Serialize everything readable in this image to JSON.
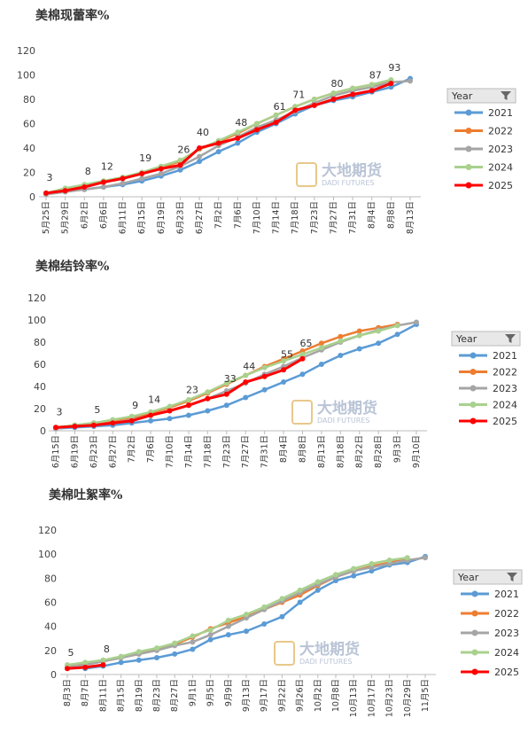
{
  "chart_data": [
    {
      "type": "line",
      "title": "美棉现蕾率%",
      "watermark": "大地期货",
      "watermark_sub": "DADI FUTURES",
      "legend_title": "Year",
      "legend": "right",
      "categories": [
        "5月25日",
        "5月29日",
        "6月2日",
        "6月6日",
        "6月11日",
        "6月15日",
        "6月19日",
        "6月23日",
        "6月27日",
        "7月2日",
        "7月6日",
        "7月10日",
        "7月14日",
        "7月18日",
        "7月23日",
        "7月27日",
        "7月31日",
        "8月4日",
        "8月8日",
        "8月13日"
      ],
      "ylim": [
        0,
        120
      ],
      "yticks": [
        0,
        20,
        40,
        60,
        80,
        100,
        120
      ],
      "series": [
        {
          "name": "2021",
          "color": "#5b9bd5",
          "values": [
            3,
            5,
            6,
            8,
            10,
            13,
            17,
            22,
            29,
            37,
            44,
            53,
            60,
            68,
            75,
            79,
            82,
            86,
            90,
            97
          ]
        },
        {
          "name": "2022",
          "color": "#ed7d31",
          "values": [
            3,
            6,
            9,
            12,
            15,
            19,
            24,
            29,
            39,
            45,
            52,
            60,
            67,
            74,
            80,
            85,
            89,
            92,
            95,
            null
          ]
        },
        {
          "name": "2023",
          "color": "#a5a5a5",
          "values": [
            2,
            4,
            6,
            8,
            11,
            15,
            19,
            25,
            33,
            42,
            49,
            57,
            63,
            70,
            77,
            83,
            87,
            90,
            94,
            95
          ]
        },
        {
          "name": "2024",
          "color": "#a9d18e",
          "values": [
            3,
            7,
            10,
            13,
            16,
            20,
            25,
            30,
            39,
            46,
            53,
            60,
            67,
            74,
            80,
            85,
            89,
            92,
            96,
            null
          ]
        },
        {
          "name": "2025",
          "color": "#ff0000",
          "values": [
            3,
            5,
            8,
            12,
            15,
            19,
            23,
            26,
            40,
            44,
            48,
            55,
            61,
            71,
            75,
            80,
            84,
            87,
            93,
            null
          ],
          "value_labels": [
            "3",
            null,
            "8",
            "12",
            null,
            "19",
            null,
            "26",
            "40",
            null,
            "48",
            null,
            "61",
            "71",
            null,
            "80",
            null,
            "87",
            "93",
            null
          ]
        }
      ]
    },
    {
      "type": "line",
      "title": "美棉结铃率%",
      "watermark": "大地期货",
      "watermark_sub": "DADI FUTURES",
      "legend_title": "Year",
      "legend": "right",
      "categories": [
        "6月15日",
        "6月19日",
        "6月23日",
        "6月27日",
        "7月2日",
        "7月6日",
        "7月10日",
        "7月14日",
        "7月18日",
        "7月23日",
        "7月27日",
        "7月31日",
        "8月4日",
        "8月8日",
        "8月13日",
        "8月18日",
        "8月22日",
        "8月28日",
        "9月3日",
        "9月10日"
      ],
      "ylim": [
        0,
        120
      ],
      "yticks": [
        0,
        20,
        40,
        60,
        80,
        100,
        120
      ],
      "series": [
        {
          "name": "2021",
          "color": "#5b9bd5",
          "values": [
            2,
            3,
            4,
            5,
            7,
            9,
            11,
            14,
            18,
            23,
            30,
            37,
            44,
            51,
            60,
            68,
            74,
            79,
            87,
            96
          ]
        },
        {
          "name": "2022",
          "color": "#ed7d31",
          "values": [
            3,
            5,
            7,
            9,
            12,
            16,
            21,
            27,
            34,
            42,
            50,
            58,
            65,
            72,
            79,
            85,
            90,
            93,
            96,
            null
          ]
        },
        {
          "name": "2023",
          "color": "#a5a5a5",
          "values": [
            2,
            4,
            5,
            7,
            10,
            14,
            18,
            23,
            29,
            36,
            43,
            51,
            58,
            66,
            73,
            80,
            86,
            91,
            95,
            98
          ]
        },
        {
          "name": "2024",
          "color": "#a9d18e",
          "values": [
            3,
            5,
            7,
            10,
            13,
            17,
            22,
            28,
            35,
            43,
            50,
            57,
            63,
            69,
            75,
            81,
            86,
            90,
            95,
            null
          ]
        },
        {
          "name": "2025",
          "color": "#ff0000",
          "values": [
            3,
            4,
            5,
            7,
            9,
            14,
            18,
            23,
            29,
            33,
            44,
            49,
            55,
            65,
            null,
            null,
            null,
            null,
            null,
            null
          ],
          "value_labels": [
            "3",
            null,
            "5",
            null,
            "9",
            "14",
            null,
            "23",
            null,
            "33",
            "44",
            null,
            "55",
            "65",
            null,
            null,
            null,
            null,
            null,
            null
          ]
        }
      ]
    },
    {
      "type": "line",
      "title": "美棉吐絮率%",
      "watermark": "大地期货",
      "watermark_sub": "DADI FUTURES",
      "legend_title": "Year",
      "legend": "right",
      "categories": [
        "8月3日",
        "8月7日",
        "8月11日",
        "8月15日",
        "8月19日",
        "8月23日",
        "8月27日",
        "9月1日",
        "9月5日",
        "9月9日",
        "9月13日",
        "9月17日",
        "9月22日",
        "9月26日",
        "10月2日",
        "10月8日",
        "10月13日",
        "10月17日",
        "10月23日",
        "10月29日",
        "11月5日"
      ],
      "ylim": [
        0,
        120
      ],
      "yticks": [
        0,
        20,
        40,
        60,
        80,
        100,
        120
      ],
      "series": [
        {
          "name": "2021",
          "color": "#5b9bd5",
          "values": [
            null,
            5,
            7,
            10,
            12,
            14,
            17,
            21,
            29,
            33,
            36,
            42,
            48,
            60,
            70,
            78,
            82,
            86,
            91,
            93,
            98
          ]
        },
        {
          "name": "2022",
          "color": "#ed7d31",
          "values": [
            7,
            9,
            11,
            14,
            17,
            21,
            25,
            31,
            38,
            43,
            48,
            54,
            60,
            66,
            74,
            81,
            86,
            90,
            93,
            96,
            null
          ]
        },
        {
          "name": "2023",
          "color": "#a5a5a5",
          "values": [
            6,
            8,
            11,
            14,
            17,
            20,
            24,
            27,
            33,
            40,
            47,
            54,
            61,
            68,
            75,
            81,
            86,
            89,
            92,
            95,
            97
          ]
        },
        {
          "name": "2024",
          "color": "#a9d18e",
          "values": [
            8,
            10,
            12,
            15,
            19,
            22,
            26,
            32,
            37,
            45,
            50,
            56,
            63,
            70,
            77,
            83,
            88,
            92,
            95,
            97,
            null
          ]
        },
        {
          "name": "2025",
          "color": "#ff0000",
          "values": [
            5,
            6,
            8,
            null,
            null,
            null,
            null,
            null,
            null,
            null,
            null,
            null,
            null,
            null,
            null,
            null,
            null,
            null,
            null,
            null,
            null
          ],
          "value_labels": [
            "5",
            null,
            "8",
            null,
            null,
            null,
            null,
            null,
            null,
            null,
            null,
            null,
            null,
            null,
            null,
            null,
            null,
            null,
            null,
            null,
            null
          ]
        }
      ]
    }
  ]
}
